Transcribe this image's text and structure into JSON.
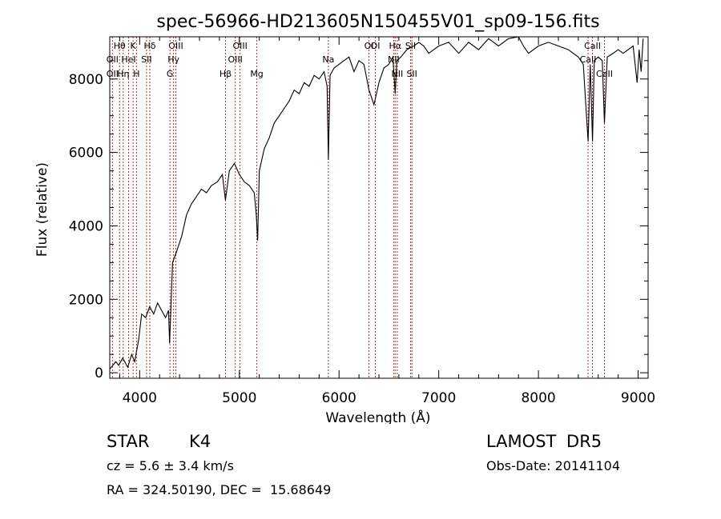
{
  "chart_data": {
    "type": "line",
    "title": "spec-56966-HD213605N150455V01_sp09-156.fits",
    "xlabel": "Wavelength (Å)",
    "ylabel": "Flux (relative)",
    "xlim": [
      3700,
      9100
    ],
    "ylim": [
      -150,
      9150
    ],
    "xticks": [
      4000,
      5000,
      6000,
      7000,
      8000,
      9000
    ],
    "xtick_labels": [
      "4000",
      "5000",
      "6000",
      "7000",
      "8000",
      "9000"
    ],
    "yticks": [
      0,
      2000,
      4000,
      6000,
      8000
    ],
    "ytick_labels": [
      "0",
      "2000",
      "4000",
      "6000",
      "8000"
    ],
    "grid": false,
    "line_color": "#000000",
    "marker_color": "#b03030",
    "series": [
      {
        "x": [
          3700,
          3760,
          3790,
          3830,
          3880,
          3920,
          3950,
          3990,
          4020,
          4060,
          4100,
          4140,
          4180,
          4220,
          4260,
          4290,
          4300,
          4330,
          4370,
          4420,
          4470,
          4520,
          4570,
          4620,
          4670,
          4720,
          4780,
          4830,
          4860,
          4900,
          4950,
          5000,
          5050,
          5100,
          5150,
          5170,
          5183,
          5200,
          5250,
          5300,
          5350,
          5400,
          5450,
          5500,
          5550,
          5600,
          5650,
          5700,
          5750,
          5800,
          5850,
          5880,
          5893,
          5910,
          5950,
          6000,
          6050,
          6100,
          6150,
          6200,
          6250,
          6300,
          6350,
          6400,
          6450,
          6500,
          6540,
          6563,
          6580,
          6620,
          6680,
          6750,
          6800,
          6850,
          6900,
          6950,
          7000,
          7100,
          7200,
          7300,
          7400,
          7500,
          7600,
          7700,
          7800,
          7850,
          7900,
          8000,
          8100,
          8200,
          8300,
          8400,
          8450,
          8498,
          8520,
          8542,
          8560,
          8600,
          8640,
          8662,
          8690,
          8750,
          8800,
          8850,
          8900,
          8950,
          8990,
          9010,
          9030,
          9050
        ],
        "y": [
          100,
          300,
          200,
          400,
          150,
          500,
          300,
          900,
          1600,
          1500,
          1800,
          1600,
          1900,
          1700,
          1500,
          1700,
          800,
          3000,
          3300,
          3700,
          4300,
          4600,
          4800,
          5000,
          4900,
          5100,
          5200,
          5400,
          4700,
          5500,
          5700,
          5400,
          5200,
          5100,
          4900,
          4300,
          3600,
          5500,
          6100,
          6400,
          6800,
          7000,
          7200,
          7400,
          7700,
          7600,
          7900,
          7800,
          8100,
          8000,
          8200,
          7800,
          5800,
          8100,
          8300,
          8400,
          8500,
          8600,
          8200,
          8500,
          8400,
          7700,
          7300,
          7900,
          8300,
          8400,
          8600,
          7600,
          8500,
          8600,
          8800,
          8900,
          9000,
          8900,
          8700,
          8800,
          8900,
          9000,
          8700,
          9000,
          8800,
          9100,
          8900,
          9100,
          9150,
          8900,
          8700,
          8900,
          9000,
          8900,
          8800,
          8600,
          8400,
          6300,
          8400,
          6300,
          8500,
          8600,
          8500,
          6800,
          8600,
          8700,
          8800,
          8700,
          8800,
          8900,
          7900,
          8800,
          8200,
          9100
        ]
      }
    ],
    "line_markers": [
      {
        "label": "Hθ",
        "x": 3798,
        "row": 1
      },
      {
        "label": "OII",
        "x": 3727,
        "row": 2
      },
      {
        "label": "OII",
        "x": 3727,
        "row": 3
      },
      {
        "label": "K",
        "x": 3934,
        "row": 1
      },
      {
        "label": "HeI",
        "x": 3889,
        "row": 2
      },
      {
        "label": "Hη",
        "x": 3835,
        "row": 3
      },
      {
        "label": "H",
        "x": 3968,
        "row": 3
      },
      {
        "label": "Hδ",
        "x": 4102,
        "row": 1
      },
      {
        "label": "SII",
        "x": 4069,
        "row": 2
      },
      {
        "label": "OIII",
        "x": 4363,
        "row": 1
      },
      {
        "label": "Hγ",
        "x": 4340,
        "row": 2
      },
      {
        "label": "G",
        "x": 4304,
        "row": 3
      },
      {
        "label": "OIII",
        "x": 5007,
        "row": 1
      },
      {
        "label": "OIII",
        "x": 4959,
        "row": 2
      },
      {
        "label": "Hβ",
        "x": 4861,
        "row": 3
      },
      {
        "label": "Mg",
        "x": 5175,
        "row": 3
      },
      {
        "label": "Na",
        "x": 5893,
        "row": 2
      },
      {
        "label": "OI",
        "x": 6300,
        "row": 1
      },
      {
        "label": "OI",
        "x": 6364,
        "row": 1
      },
      {
        "label": "Hα",
        "x": 6563,
        "row": 1
      },
      {
        "label": "NII",
        "x": 6548,
        "row": 2
      },
      {
        "label": "NII",
        "x": 6584,
        "row": 3
      },
      {
        "label": "SII",
        "x": 6717,
        "row": 1
      },
      {
        "label": "SII",
        "x": 6731,
        "row": 3
      },
      {
        "label": "CaII",
        "x": 8542,
        "row": 1
      },
      {
        "label": "CaII",
        "x": 8498,
        "row": 2
      },
      {
        "label": "CaII",
        "x": 8662,
        "row": 3
      }
    ]
  },
  "info": {
    "object_class": "STAR",
    "object_subclass": "K4",
    "survey": "LAMOST DR5",
    "redshift": "cz = 5.6 ± 3.4 km/s",
    "obs_date": "Obs-Date: 20141104",
    "coords": "RA = 324.50190, DEC =  15.68649"
  }
}
